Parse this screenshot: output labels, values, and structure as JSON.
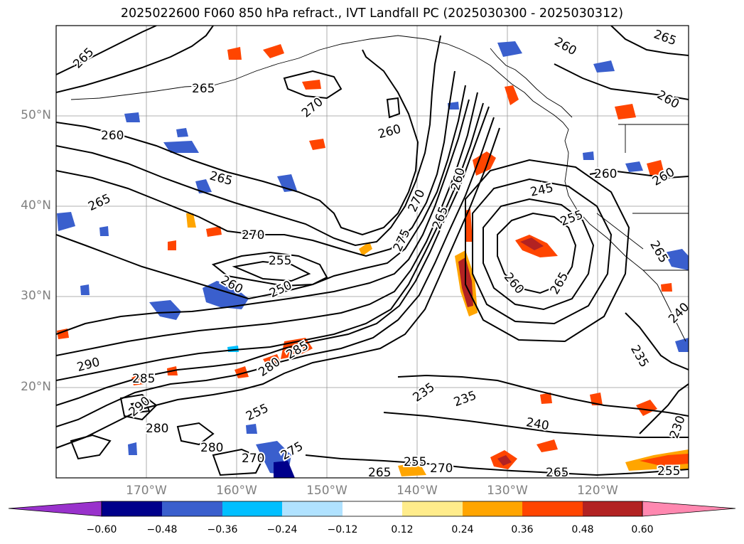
{
  "title": "2025022600 F060 850 hPa refract., IVT Landfall PC (2025030300 - 2025030312)",
  "lat_labels": [
    "50°N",
    "40°N",
    "30°N",
    "20°N"
  ],
  "lon_labels": [
    "170°W",
    "160°W",
    "150°W",
    "140°W",
    "130°W",
    "120°W"
  ],
  "colorbar": {
    "ticks": [
      "−0.60",
      "−0.48",
      "−0.36",
      "−0.24",
      "−0.12",
      "0.12",
      "0.24",
      "0.36",
      "0.48",
      "0.60"
    ],
    "colors": [
      "#9932cc",
      "#00008b",
      "#3a5fcd",
      "#00bfff",
      "#b0e2ff",
      "#ffffff",
      "#ffec8b",
      "#ffa500",
      "#ff4500",
      "#b22222",
      "#ff88b0"
    ]
  },
  "contour_labels": [
    "265",
    "265",
    "270",
    "260",
    "260",
    "265",
    "265",
    "255",
    "250",
    "260",
    "270",
    "275",
    "270",
    "265",
    "260",
    "245",
    "255",
    "260",
    "265",
    "260",
    "260",
    "265",
    "290",
    "285",
    "280",
    "285",
    "290",
    "280",
    "255",
    "270",
    "275",
    "280",
    "235",
    "235",
    "240",
    "230",
    "255",
    "270",
    "265",
    "265",
    "255",
    "240",
    "235",
    "260",
    "260",
    "265"
  ]
}
